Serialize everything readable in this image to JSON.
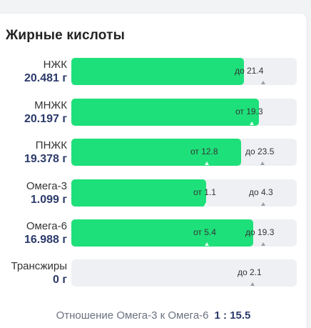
{
  "title": "Жирные кислоты",
  "rows": [
    {
      "name": "НЖК",
      "value": "20.481 г",
      "fill_pct": 76,
      "min": "",
      "max": "до 21.4"
    },
    {
      "name": "МНЖК",
      "value": "20.197 г",
      "fill_pct": 83,
      "min": "от 19.3",
      "max": ""
    },
    {
      "name": "ПНЖК",
      "value": "19.378 г",
      "fill_pct": 75,
      "min": "от 12.8",
      "max": "до 23.5"
    },
    {
      "name": "Омега-3",
      "value": "1.099 г",
      "fill_pct": 60,
      "min": "от 1.1",
      "max": "до 4.3"
    },
    {
      "name": "Омега-6",
      "value": "16.988 г",
      "fill_pct": 81,
      "min": "от 5.4",
      "max": "до 19.3"
    },
    {
      "name": "Трансжиры",
      "value": "0 г",
      "fill_pct": 0,
      "min": "",
      "max": "до 2.1"
    }
  ],
  "ratio": {
    "label": "Отношение Омега-3 к Омега-6",
    "value": "1 : 15.5"
  },
  "colors": {
    "fill": "#1ee07a",
    "track": "#eef0f3",
    "value_text": "#2c3a6b"
  }
}
